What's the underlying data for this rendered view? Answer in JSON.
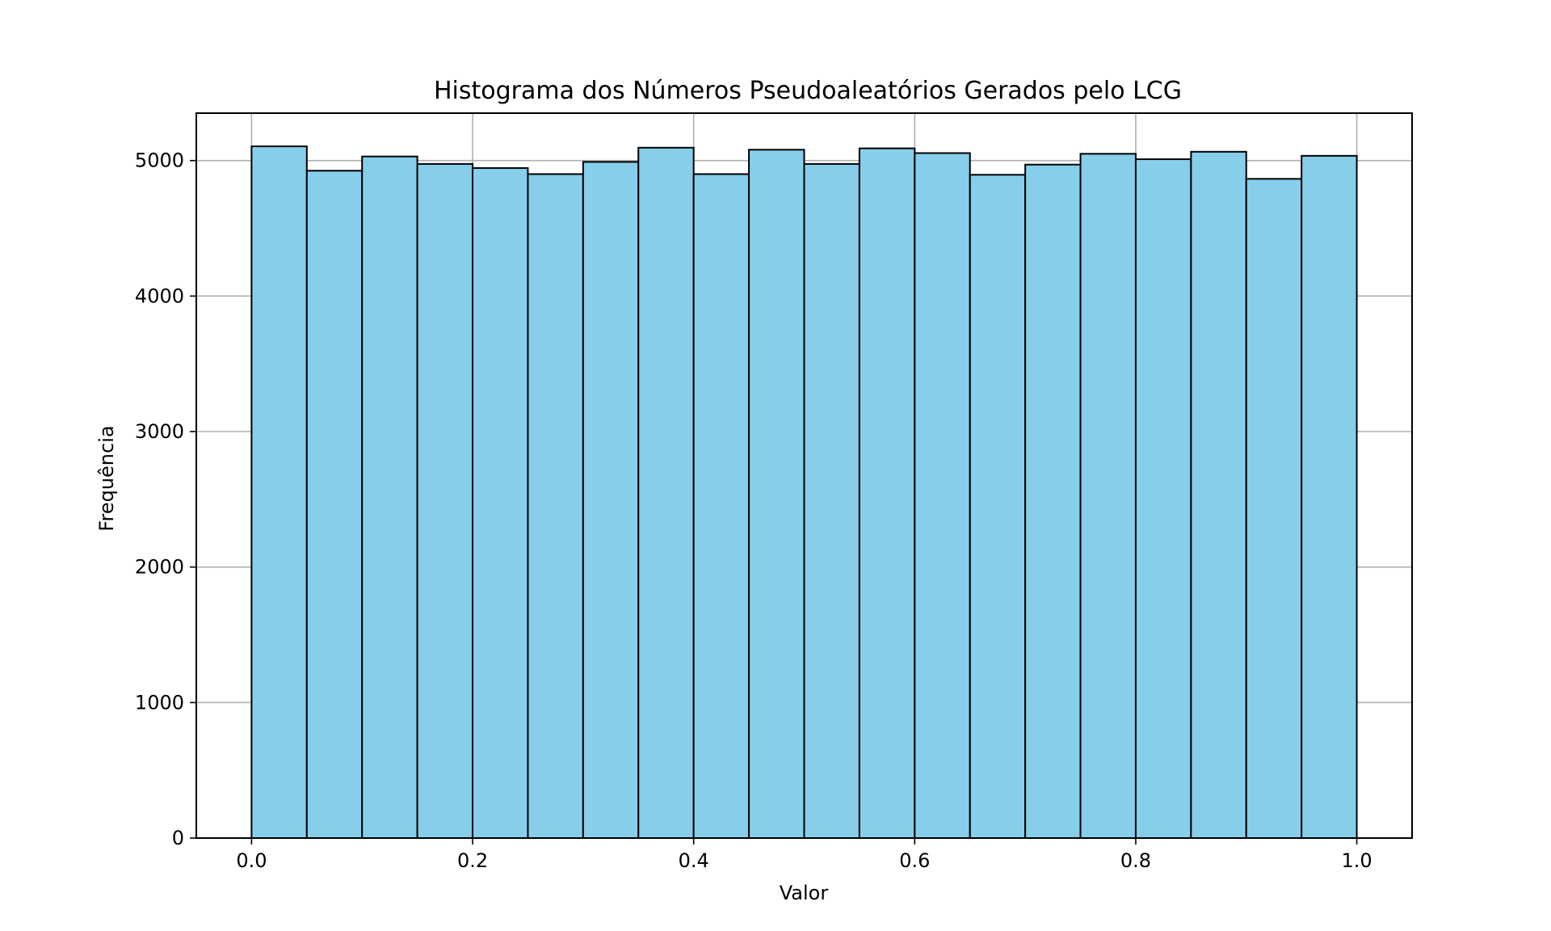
{
  "chart_data": {
    "type": "bar",
    "title": "Histograma dos Números Pseudoaleatórios Gerados pelo LCG",
    "xlabel": "Valor",
    "ylabel": "Frequência",
    "xlim": [
      -0.05,
      1.05
    ],
    "ylim": [
      0,
      5350
    ],
    "grid": true,
    "bar_color": "#87ceeb",
    "edge_color": "#000000",
    "bins": [
      {
        "start": 0.0,
        "end": 0.05,
        "value": 5105
      },
      {
        "start": 0.05,
        "end": 0.1,
        "value": 4925
      },
      {
        "start": 0.1,
        "end": 0.15,
        "value": 5030
      },
      {
        "start": 0.15,
        "end": 0.2,
        "value": 4975
      },
      {
        "start": 0.2,
        "end": 0.25,
        "value": 4945
      },
      {
        "start": 0.25,
        "end": 0.3,
        "value": 4900
      },
      {
        "start": 0.3,
        "end": 0.35,
        "value": 4990
      },
      {
        "start": 0.35,
        "end": 0.4,
        "value": 5095
      },
      {
        "start": 0.4,
        "end": 0.45,
        "value": 4900
      },
      {
        "start": 0.45,
        "end": 0.5,
        "value": 5080
      },
      {
        "start": 0.5,
        "end": 0.55,
        "value": 4975
      },
      {
        "start": 0.55,
        "end": 0.6,
        "value": 5090
      },
      {
        "start": 0.6,
        "end": 0.65,
        "value": 5055
      },
      {
        "start": 0.65,
        "end": 0.7,
        "value": 4895
      },
      {
        "start": 0.7,
        "end": 0.75,
        "value": 4970
      },
      {
        "start": 0.75,
        "end": 0.8,
        "value": 5050
      },
      {
        "start": 0.8,
        "end": 0.85,
        "value": 5010
      },
      {
        "start": 0.85,
        "end": 0.9,
        "value": 5065
      },
      {
        "start": 0.9,
        "end": 0.95,
        "value": 4865
      },
      {
        "start": 0.95,
        "end": 1.0,
        "value": 5035
      }
    ],
    "x_ticks": [
      0.0,
      0.2,
      0.4,
      0.6,
      0.8,
      1.0
    ],
    "x_tick_labels": [
      "0.0",
      "0.2",
      "0.4",
      "0.6",
      "0.8",
      "1.0"
    ],
    "y_ticks": [
      0,
      1000,
      2000,
      3000,
      4000,
      5000
    ],
    "y_tick_labels": [
      "0",
      "1000",
      "2000",
      "3000",
      "4000",
      "5000"
    ]
  }
}
